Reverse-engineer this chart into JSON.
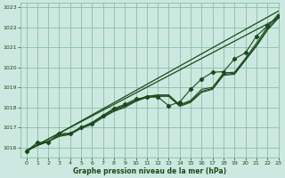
{
  "xlabel": "Graphe pression niveau de la mer (hPa)",
  "xlim": [
    -0.5,
    23
  ],
  "ylim": [
    1015.5,
    1023.2
  ],
  "yticks": [
    1016,
    1017,
    1018,
    1019,
    1020,
    1021,
    1022,
    1023
  ],
  "xticks": [
    0,
    1,
    2,
    3,
    4,
    5,
    6,
    7,
    8,
    9,
    10,
    11,
    12,
    13,
    14,
    15,
    16,
    17,
    18,
    19,
    20,
    21,
    22,
    23
  ],
  "bg_color": "#cce8e0",
  "grid_color": "#7ab89a",
  "line_color": "#1a4a1a",
  "lines_plain": [
    [
      1015.85,
      1016.1,
      1016.3,
      1016.55,
      1016.65,
      1016.95,
      1017.15,
      1017.5,
      1017.8,
      1018.0,
      1018.3,
      1018.5,
      1018.55,
      1018.55,
      1018.05,
      1018.25,
      1018.75,
      1018.9,
      1019.6,
      1019.65,
      1020.35,
      1021.05,
      1021.85,
      1022.45
    ],
    [
      1015.85,
      1016.1,
      1016.3,
      1016.6,
      1016.7,
      1017.0,
      1017.2,
      1017.55,
      1017.85,
      1018.05,
      1018.35,
      1018.55,
      1018.6,
      1018.6,
      1018.1,
      1018.3,
      1018.8,
      1018.95,
      1019.65,
      1019.7,
      1020.4,
      1021.1,
      1021.9,
      1022.5
    ],
    [
      1015.85,
      1016.1,
      1016.3,
      1016.6,
      1016.7,
      1017.0,
      1017.25,
      1017.6,
      1017.9,
      1018.1,
      1018.35,
      1018.55,
      1018.62,
      1018.62,
      1018.12,
      1018.35,
      1018.9,
      1019.0,
      1019.72,
      1019.75,
      1020.45,
      1021.2,
      1022.0,
      1022.65
    ]
  ],
  "line_marker": [
    1015.8,
    1016.25,
    1016.25,
    1016.7,
    1016.7,
    1017.0,
    1017.2,
    1017.6,
    1017.95,
    1018.15,
    1018.42,
    1018.5,
    1018.52,
    1018.08,
    1018.27,
    1018.9,
    1019.42,
    1019.75,
    1019.78,
    1020.42,
    1020.72,
    1021.55,
    1022.05,
    1022.55
  ],
  "line_upper": [
    1015.8,
    1022.8
  ],
  "line_lower": [
    1015.85,
    1022.45
  ],
  "marker_style": "D",
  "marker_size": 2.2
}
